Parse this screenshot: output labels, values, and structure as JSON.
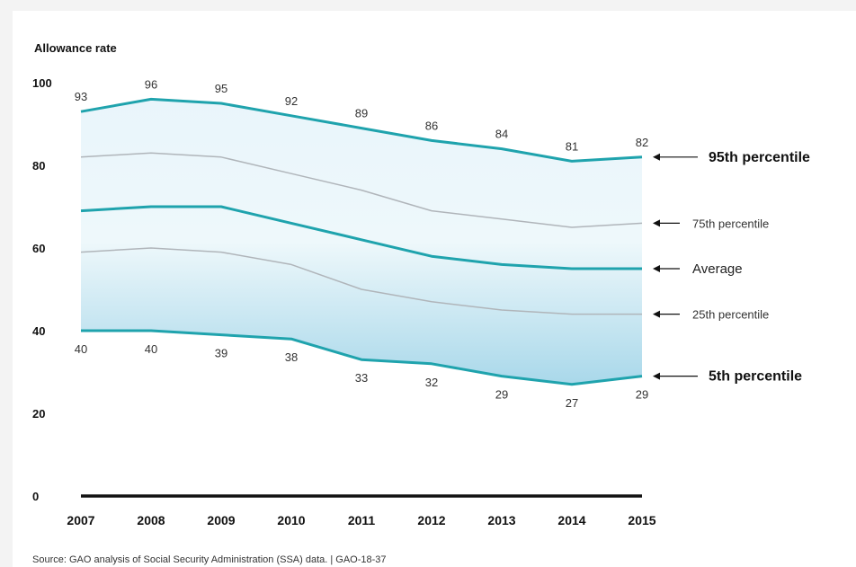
{
  "chart_data": {
    "type": "area",
    "ylabel": "Allowance rate",
    "ylim": [
      0,
      100
    ],
    "yticks": [
      0,
      20,
      40,
      60,
      80,
      100
    ],
    "x": [
      "2007",
      "2008",
      "2009",
      "2010",
      "2011",
      "2012",
      "2013",
      "2014",
      "2015"
    ],
    "series": [
      {
        "name": "95th percentile",
        "values": [
          93,
          96,
          95,
          92,
          89,
          86,
          84,
          81,
          82
        ],
        "labeled": true,
        "style": "major"
      },
      {
        "name": "75th percentile",
        "values": [
          82,
          83,
          82,
          78,
          74,
          69,
          67,
          65,
          66
        ],
        "labeled": false,
        "style": "minor"
      },
      {
        "name": "Average",
        "values": [
          69,
          70,
          70,
          66,
          62,
          58,
          56,
          55,
          55
        ],
        "labeled": false,
        "style": "avg"
      },
      {
        "name": "25th percentile",
        "values": [
          59,
          60,
          59,
          56,
          50,
          47,
          45,
          44,
          44
        ],
        "labeled": false,
        "style": "minor"
      },
      {
        "name": "5th percentile",
        "values": [
          40,
          40,
          39,
          38,
          33,
          32,
          29,
          27,
          29
        ],
        "labeled": true,
        "style": "major"
      }
    ],
    "colors": {
      "major": "#1fa3ad",
      "minor": "#b0b5ba",
      "fill_top": "#e9f5fb",
      "fill_bottom": "#a9d8ea",
      "axis": "#111111"
    }
  },
  "source_note": "Source: GAO analysis of Social Security Administration (SSA) data.  |  GAO-18-37"
}
